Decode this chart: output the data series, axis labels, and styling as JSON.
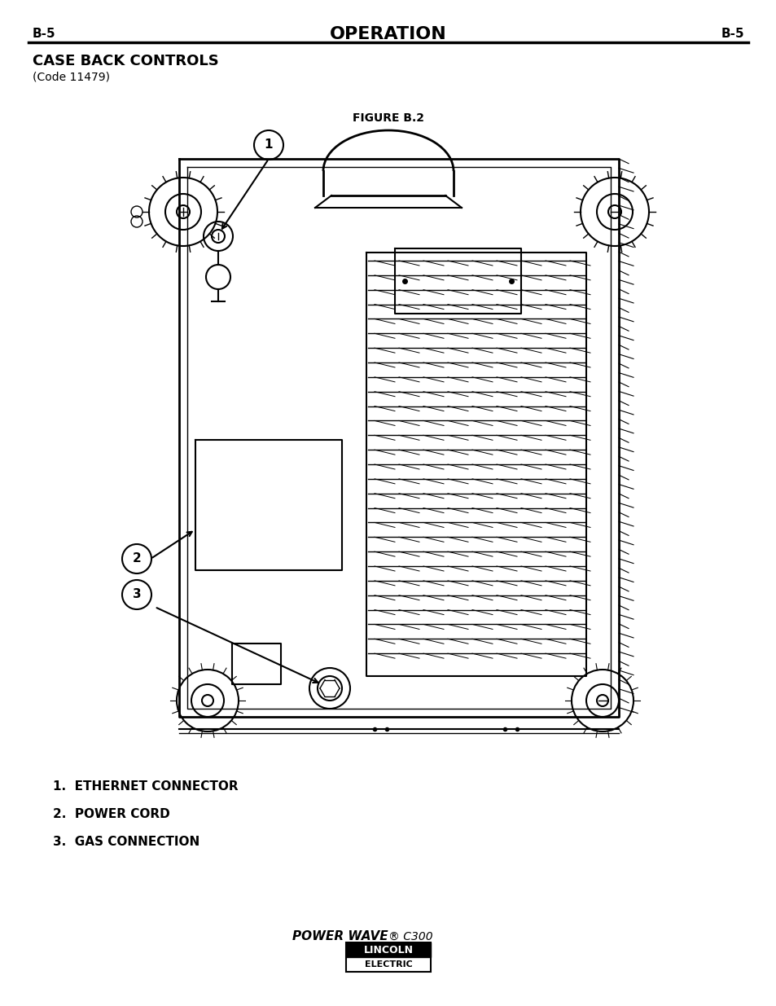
{
  "page_bg": "#ffffff",
  "header_left": "B-5",
  "header_center": "OPERATION",
  "header_right": "B-5",
  "section_title": "CASE BACK CONTROLS",
  "section_subtitle": "(Code 11479)",
  "figure_label": "FIGURE B.2",
  "callouts": [
    "1",
    "2",
    "3"
  ],
  "legend": [
    "1.  ETHERNET CONNECTOR",
    "2.  POWER CORD",
    "3.  GAS CONNECTION"
  ],
  "footer_line1": "POWER WAVE® C300",
  "footer_line2": "LINCOLN",
  "footer_line3": "ELECTRIC",
  "text_color": "#000000",
  "line_color": "#000000"
}
